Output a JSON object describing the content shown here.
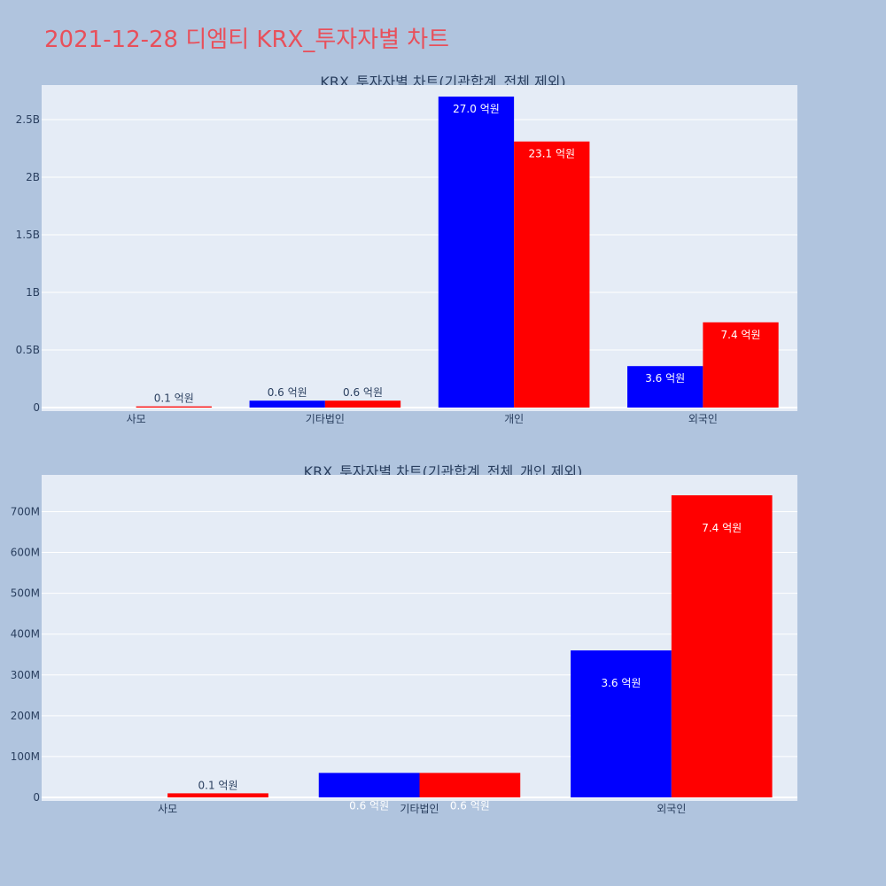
{
  "title": "2021-12-28 디엠티 KRX_투자자별 차트",
  "colors": {
    "background": "#b0c4de",
    "plot_bg": "#e5ecf6",
    "buy": "#0000ff",
    "sell": "#ff0000",
    "grid": "#ffffff",
    "text": "#2a3f5f"
  },
  "chart_data": [
    {
      "type": "bar",
      "title": "KRX_투자자별 차트(기관합계_전체 제외)",
      "categories": [
        "사모",
        "기타법인",
        "개인",
        "외국인"
      ],
      "ylim": [
        0,
        2800000000
      ],
      "yticks": [
        0,
        500000000,
        1000000000,
        1500000000,
        2000000000,
        2500000000
      ],
      "ytick_labels": [
        "0",
        "0.5B",
        "1B",
        "1.5B",
        "2B",
        "2.5B"
      ],
      "series": [
        {
          "color": "#0000ff",
          "values": [
            0,
            60000000,
            2700000000,
            360000000
          ],
          "labels": [
            "",
            "0.6 억원",
            "27.0 억원",
            "3.6 억원"
          ]
        },
        {
          "color": "#ff0000",
          "values": [
            10000000,
            60000000,
            2310000000,
            740000000
          ],
          "labels": [
            "0.1 억원",
            "0.6 억원",
            "23.1 억원",
            "7.4 억원"
          ]
        }
      ]
    },
    {
      "type": "bar",
      "title": "KRX_투자자별 차트(기관합계_전체_개인 제외)",
      "categories": [
        "사모",
        "기타법인",
        "외국인"
      ],
      "ylim": [
        0,
        790000000
      ],
      "yticks": [
        0,
        100000000,
        200000000,
        300000000,
        400000000,
        500000000,
        600000000,
        700000000
      ],
      "ytick_labels": [
        "0",
        "100M",
        "200M",
        "300M",
        "400M",
        "500M",
        "600M",
        "700M"
      ],
      "series": [
        {
          "color": "#0000ff",
          "values": [
            0,
            60000000,
            360000000
          ],
          "labels": [
            "",
            "0.6 억원",
            "3.6 억원"
          ]
        },
        {
          "color": "#ff0000",
          "values": [
            10000000,
            60000000,
            740000000
          ],
          "labels": [
            "0.1 억원",
            "0.6 억원",
            "7.4 억원"
          ]
        }
      ]
    }
  ]
}
